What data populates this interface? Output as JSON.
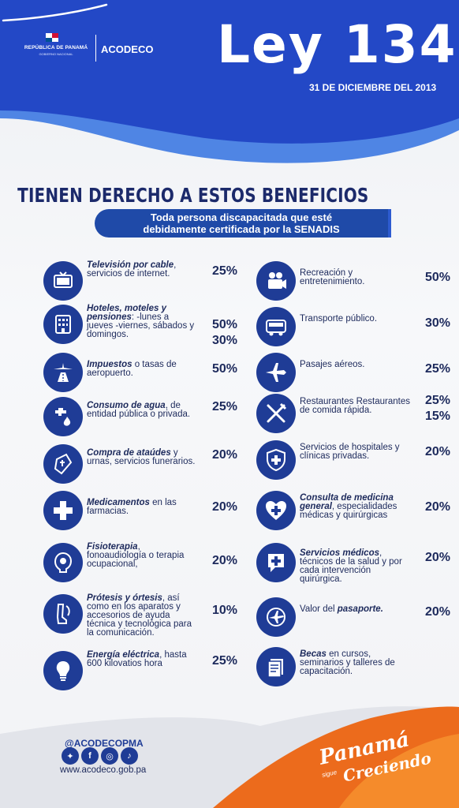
{
  "header": {
    "republica": "REPÚBLICA DE PANAMÁ",
    "gobierno": "GOBIERNO NACIONAL",
    "agency": "ACODECO",
    "law_title": "Ley 134",
    "law_date": "31 DE DICIEMBRE DEL 2013"
  },
  "title": "TIENEN DERECHO A ESTOS BENEFICIOS",
  "subtitle_line1": "Toda persona discapacitada que esté",
  "subtitle_line2": "debidamente certificada por la SENADIS",
  "left_items": [
    {
      "icon": "tv-icon",
      "bold": "Televisión por cable",
      "rest": ", servicios de internet.",
      "pct": "25%"
    },
    {
      "icon": "hotel-icon",
      "bold": "Hoteles, moteles y pensiones",
      "rest": ": -lunes a jueves -viernes, sábados y domingos.",
      "pct": "50%",
      "pct2": "30%"
    },
    {
      "icon": "airplane-runway-icon",
      "bold": "Impuestos",
      "rest": " o tasas de aeropuerto.",
      "pct": "50%"
    },
    {
      "icon": "water-tap-icon",
      "bold": "Consumo de agua",
      "rest": ", de entidad pública o privada.",
      "pct": "25%"
    },
    {
      "icon": "coffin-icon",
      "bold": "Compra de ataúdes",
      "rest": " y urnas, servicios funerarios.",
      "pct": "20%"
    },
    {
      "icon": "medicine-cross-icon",
      "bold": "Medicamentos",
      "rest": " en las farmacias.",
      "pct": "20%"
    },
    {
      "icon": "therapy-icon",
      "bold": "Fisioterapia",
      "rest": ", fonoaudiología o terapia ocupacional,",
      "pct": "20%"
    },
    {
      "icon": "prosthesis-icon",
      "bold": "Prótesis y órtesis",
      "rest": ", así como en los aparatos y accesorios de ayuda técnica y tecnológica para la comunicación.",
      "pct": "10%"
    },
    {
      "icon": "lightbulb-icon",
      "bold": "Energía eléctrica",
      "rest": ", hasta 600 kilovatios hora",
      "pct": "25%"
    }
  ],
  "right_items": [
    {
      "icon": "projector-icon",
      "bold": "",
      "rest": "Recreación y entretenimiento.",
      "pct": "50%"
    },
    {
      "icon": "bus-icon",
      "bold": "",
      "rest": "Transporte público.",
      "pct": "30%"
    },
    {
      "icon": "airplane-icon",
      "bold": "",
      "rest": "Pasajes aéreos.",
      "pct": "25%"
    },
    {
      "icon": "cutlery-icon",
      "bold": "",
      "rest": "Restaurantes Restaurantes de comida rápida.",
      "pct": "25%",
      "pct2": "15%"
    },
    {
      "icon": "shield-cross-icon",
      "bold": "",
      "rest": "Servicios de hospitales y clínicas privadas.",
      "pct": "20%"
    },
    {
      "icon": "heart-cross-icon",
      "bold": "Consulta de medicina general",
      "rest": ", especialidades médicas y quirúrgicas",
      "pct": "20%"
    },
    {
      "icon": "medical-bubble-icon",
      "bold": "Servicios médicos",
      "rest": ", técnicos de la salud y por cada intervención quirúrgica.",
      "pct": "20%"
    },
    {
      "icon": "passport-icon",
      "bold": "pasaporte.",
      "pre": "Valor del ",
      "rest": "",
      "pct": "20%"
    },
    {
      "icon": "scholarship-icon",
      "bold": "Becas",
      "rest": " en cursos, seminarios y talleres de capacitación.",
      "pct": ""
    }
  ],
  "footer": {
    "handle": "@ACODECOPMA",
    "website": "www.acodeco.gob.pa",
    "slogan_main": "Panamá",
    "slogan_small": "sigue",
    "slogan_end": "Creciendo"
  },
  "colors": {
    "primary": "#1f3c96",
    "header_blue": "#2448c4",
    "orange": "#ec6b1c"
  }
}
